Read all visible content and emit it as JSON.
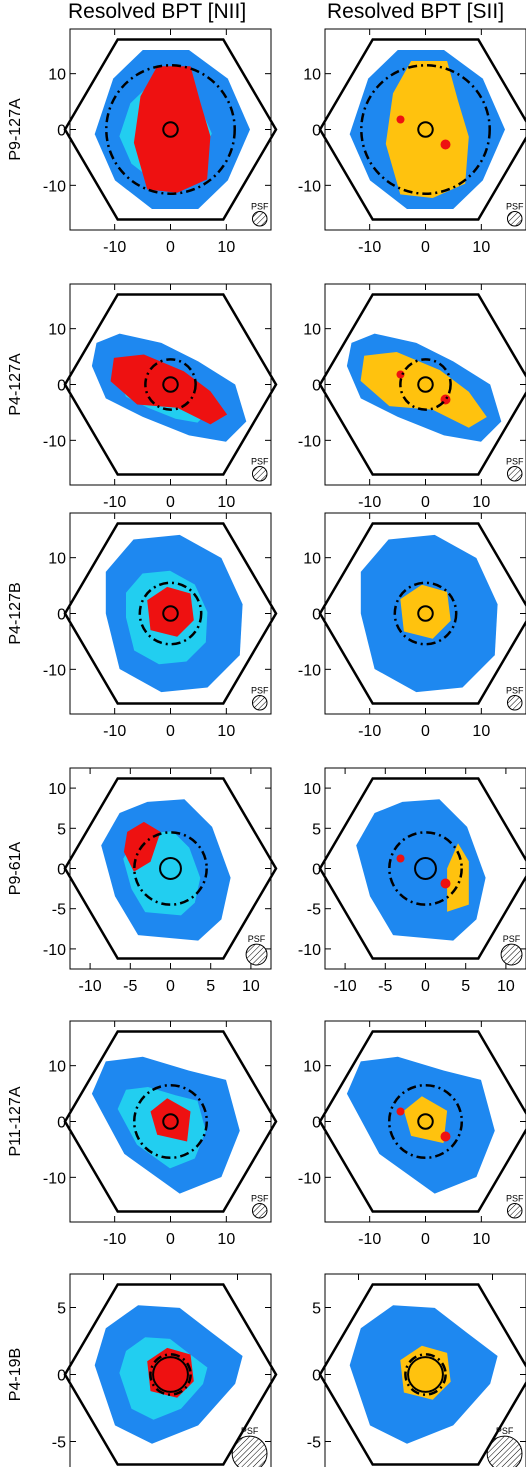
{
  "column_titles": [
    "Resolved BPT [NII]",
    "Resolved BPT [SII]"
  ],
  "colors": {
    "nii_agn": "#ee1111",
    "sii_agn": "#ffc20e",
    "star_forming": "#1e88f0",
    "composite": "#22d6f0",
    "frame": "#000000"
  },
  "psf_label": "PSF",
  "chart_data": [
    {
      "type": "heatmap",
      "panel": "P9-127A / [NII]",
      "ylabel": "P9-127A",
      "xlim": [
        -18,
        18
      ],
      "ylim": [
        -18,
        18
      ],
      "xticks": [
        -10,
        0,
        10
      ],
      "yticks": [
        -10,
        0,
        10
      ],
      "center_circle_radius": 1.3,
      "dashdot_radius": 11.5,
      "psf_radius": 1.3,
      "regions": [
        "star_forming",
        "composite",
        "nii_agn"
      ]
    },
    {
      "type": "heatmap",
      "panel": "P9-127A / [SII]",
      "xlim": [
        -18,
        18
      ],
      "ylim": [
        -18,
        18
      ],
      "xticks": [
        -10,
        0,
        10
      ],
      "yticks": [
        -10,
        0,
        10
      ],
      "center_circle_radius": 1.3,
      "dashdot_radius": 11.5,
      "psf_radius": 1.3,
      "regions": [
        "star_forming",
        "sii_agn",
        "nii_agn"
      ]
    },
    {
      "type": "heatmap",
      "panel": "P4-127A / [NII]",
      "ylabel": "P4-127A",
      "xlim": [
        -18,
        18
      ],
      "ylim": [
        -18,
        18
      ],
      "xticks": [
        -10,
        0,
        10
      ],
      "yticks": [
        -10,
        0,
        10
      ],
      "center_circle_radius": 1.3,
      "dashdot_radius": 4.5,
      "psf_radius": 1.3,
      "regions": [
        "star_forming",
        "composite",
        "nii_agn"
      ]
    },
    {
      "type": "heatmap",
      "panel": "P4-127A / [SII]",
      "xlim": [
        -18,
        18
      ],
      "ylim": [
        -18,
        18
      ],
      "xticks": [
        -10,
        0,
        10
      ],
      "yticks": [
        -10,
        0,
        10
      ],
      "center_circle_radius": 1.3,
      "dashdot_radius": 4.5,
      "psf_radius": 1.3,
      "regions": [
        "star_forming",
        "sii_agn",
        "nii_agn"
      ]
    },
    {
      "type": "heatmap",
      "panel": "P4-127B / [NII]",
      "ylabel": "P4-127B",
      "xlim": [
        -18,
        18
      ],
      "ylim": [
        -18,
        18
      ],
      "xticks": [
        -10,
        0,
        10
      ],
      "yticks": [
        -10,
        0,
        10
      ],
      "center_circle_radius": 1.3,
      "dashdot_radius": 5.5,
      "psf_radius": 1.3,
      "regions": [
        "star_forming",
        "composite",
        "nii_agn"
      ]
    },
    {
      "type": "heatmap",
      "panel": "P4-127B / [SII]",
      "xlim": [
        -18,
        18
      ],
      "ylim": [
        -18,
        18
      ],
      "xticks": [
        -10,
        0,
        10
      ],
      "yticks": [
        -10,
        0,
        10
      ],
      "center_circle_radius": 1.3,
      "dashdot_radius": 5.5,
      "psf_radius": 1.3,
      "regions": [
        "star_forming",
        "sii_agn"
      ]
    },
    {
      "type": "heatmap",
      "panel": "P9-61A / [NII]",
      "ylabel": "P9-61A",
      "xlim": [
        -12.5,
        12.5
      ],
      "ylim": [
        -12.5,
        12.5
      ],
      "xticks": [
        -10,
        -5,
        0,
        5,
        10
      ],
      "yticks": [
        -10,
        -5,
        0,
        5,
        10
      ],
      "center_circle_radius": 1.3,
      "dashdot_radius": 4.5,
      "psf_radius": 1.3,
      "regions": [
        "star_forming",
        "composite",
        "nii_agn"
      ]
    },
    {
      "type": "heatmap",
      "panel": "P9-61A / [SII]",
      "xlim": [
        -12.5,
        12.5
      ],
      "ylim": [
        -12.5,
        12.5
      ],
      "xticks": [
        -10,
        -5,
        0,
        5,
        10
      ],
      "yticks": [
        -10,
        -5,
        0,
        5,
        10
      ],
      "center_circle_radius": 1.3,
      "dashdot_radius": 4.5,
      "psf_radius": 1.3,
      "regions": [
        "star_forming",
        "sii_agn",
        "nii_agn"
      ]
    },
    {
      "type": "heatmap",
      "panel": "P11-127A / [NII]",
      "ylabel": "P11-127A",
      "xlim": [
        -18,
        18
      ],
      "ylim": [
        -18,
        18
      ],
      "xticks": [
        -10,
        0,
        10
      ],
      "yticks": [
        -10,
        0,
        10
      ],
      "center_circle_radius": 1.3,
      "dashdot_radius": 6.5,
      "psf_radius": 1.3,
      "regions": [
        "star_forming",
        "composite",
        "nii_agn"
      ]
    },
    {
      "type": "heatmap",
      "panel": "P11-127A / [SII]",
      "xlim": [
        -18,
        18
      ],
      "ylim": [
        -18,
        18
      ],
      "xticks": [
        -10,
        0,
        10
      ],
      "yticks": [
        -10,
        0,
        10
      ],
      "center_circle_radius": 1.3,
      "dashdot_radius": 6.5,
      "psf_radius": 1.3,
      "regions": [
        "star_forming",
        "sii_agn",
        "nii_agn"
      ]
    },
    {
      "type": "heatmap",
      "panel": "P4-19B / [NII]",
      "ylabel": "P4-19B",
      "xlim": [
        -7.5,
        7.5
      ],
      "ylim": [
        -7.5,
        7.5
      ],
      "xticks": [
        -5,
        0,
        5
      ],
      "yticks": [
        -5,
        0,
        5
      ],
      "center_circle_radius": 1.3,
      "dashdot_radius": 1.5,
      "psf_radius": 1.3,
      "regions": [
        "star_forming",
        "composite",
        "nii_agn"
      ]
    },
    {
      "type": "heatmap",
      "panel": "P4-19B / [SII]",
      "xlim": [
        -7.5,
        7.5
      ],
      "ylim": [
        -7.5,
        7.5
      ],
      "xticks": [
        -5,
        0,
        5
      ],
      "yticks": [
        -5,
        0,
        5
      ],
      "center_circle_radius": 1.3,
      "dashdot_radius": 1.5,
      "psf_radius": 1.3,
      "regions": [
        "star_forming",
        "sii_agn"
      ]
    }
  ]
}
